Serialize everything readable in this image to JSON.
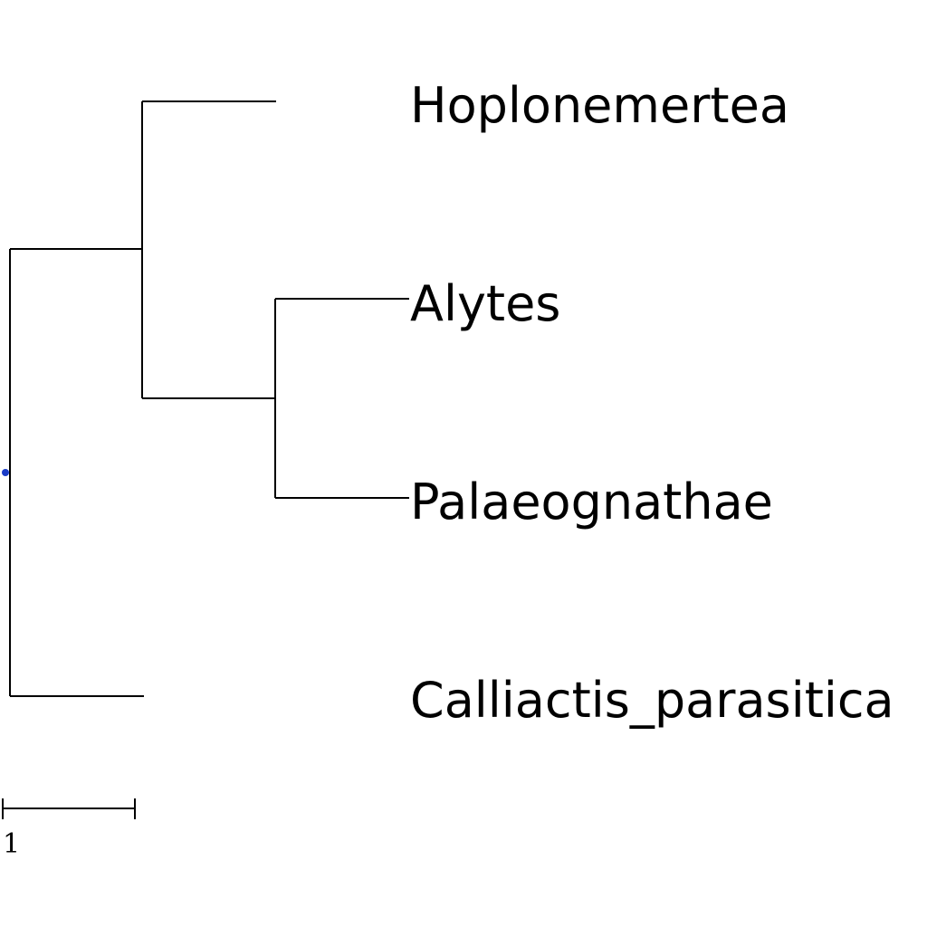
{
  "tree": {
    "newick": "(((Hoplonemertea:1,(Alytes:1,Palaeognathae:1):1):1),Calliactis_parasitica:1);",
    "leaves": [
      "Hoplonemertea",
      "Alytes",
      "Palaeognathae",
      "Calliactis_parasitica"
    ],
    "root_marker_color": "#1a3cc8",
    "line_color": "#000000"
  },
  "scale_bar": {
    "label": "1",
    "value": 1
  }
}
